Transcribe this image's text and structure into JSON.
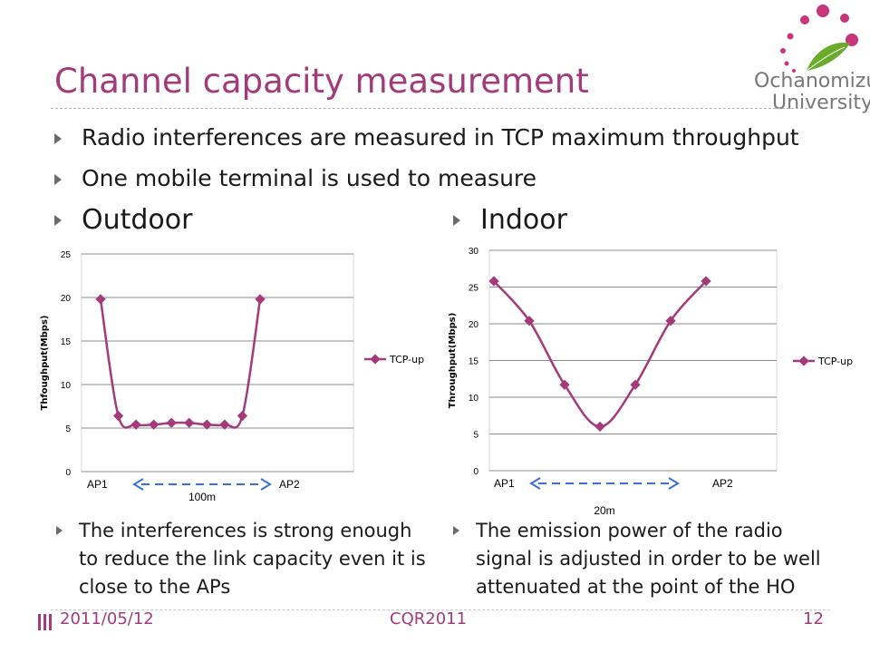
{
  "slide": {
    "title": "Channel capacity measurement",
    "bullets": [
      "Radio interferences are measured in TCP maximum throughput",
      "One mobile terminal is used to measure"
    ],
    "outdoor_heading": "Outdoor",
    "indoor_heading": "Indoor",
    "outdoor_note": "The interferences is strong enough to reduce the link capacity even it is close to the APs",
    "indoor_note": "The emission power of the radio signal is adjusted in order to be well attenuated at the point of the HO"
  },
  "logo": {
    "line1": "Ochanomizu",
    "line2": "University",
    "accent_color": "#c8357c",
    "leaf_color": "#6bab2c"
  },
  "footer": {
    "date": "2011/05/12",
    "conference": "CQR2011",
    "page": "12"
  },
  "colors": {
    "title": "#a23a7b",
    "series": "#a23a7b",
    "arrow": "#3a6fd6"
  },
  "chart_data": [
    {
      "type": "line",
      "ylabel": "Thfoughput(Mbps)",
      "ylim": [
        0,
        25
      ],
      "yticks": [
        "0",
        "5",
        "10",
        "15",
        "20",
        "25"
      ],
      "x_start_label": "AP1",
      "x_end_label": "AP2",
      "distance_label": "100m",
      "legend": "TCP-up",
      "series": [
        {
          "name": "TCP-up",
          "values": [
            19.8,
            6.4,
            5.4,
            5.4,
            5.6,
            5.6,
            5.4,
            5.4,
            6.4,
            19.8
          ]
        }
      ]
    },
    {
      "type": "line",
      "ylabel": "Throughput(Mbps)",
      "ylim": [
        0,
        30
      ],
      "yticks": [
        "0",
        "5",
        "10",
        "15",
        "20",
        "25",
        "30"
      ],
      "x_start_label": "AP1",
      "x_end_label": "AP2",
      "distance_label": "20m",
      "legend": "TCP-up",
      "series": [
        {
          "name": "TCP-up",
          "values": [
            25.8,
            20.4,
            11.7,
            6.0,
            11.7,
            20.4,
            25.8
          ]
        }
      ]
    }
  ]
}
